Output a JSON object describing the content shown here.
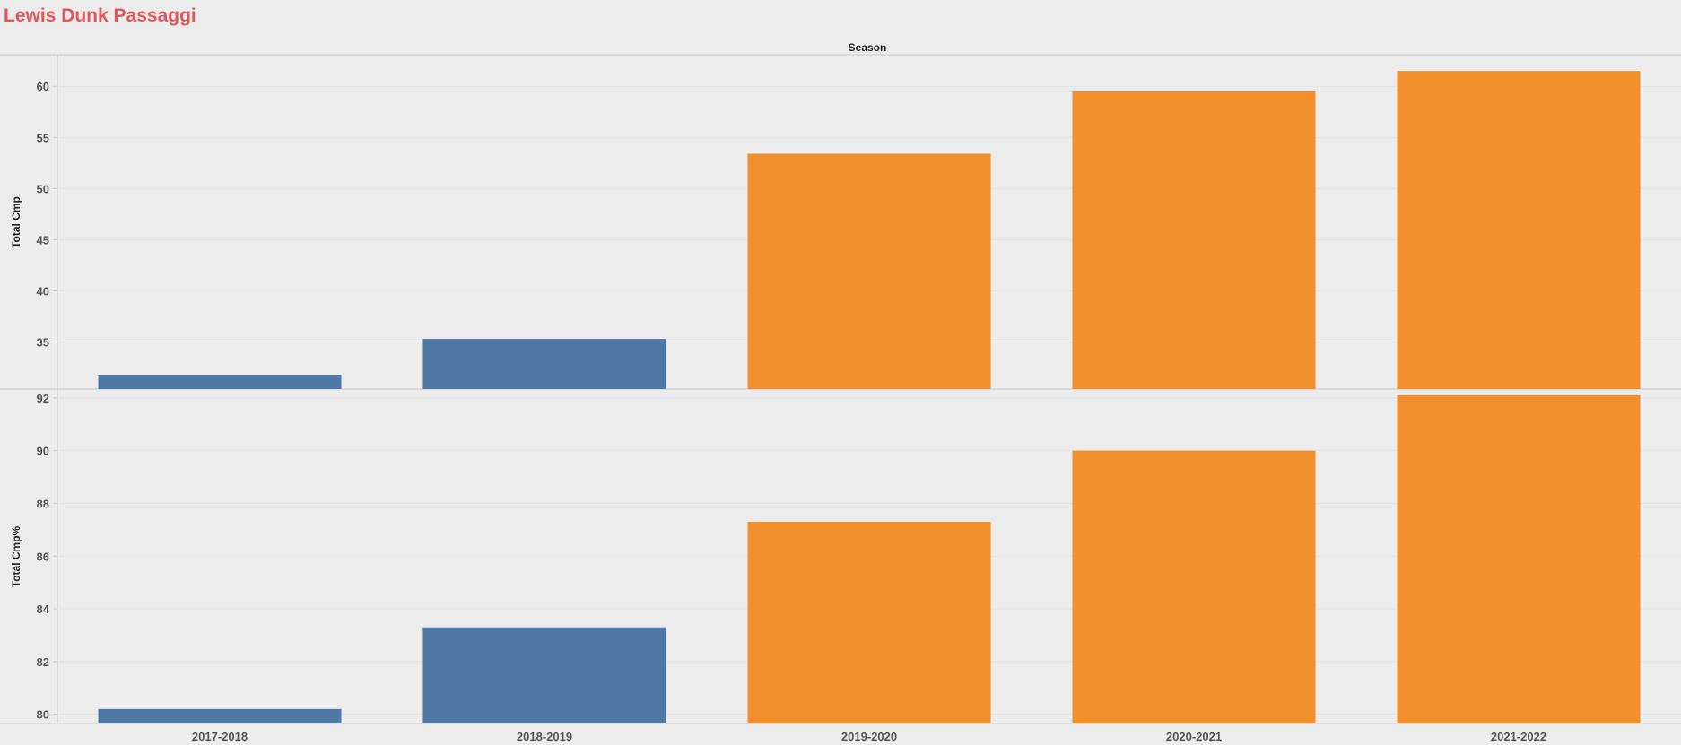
{
  "title": "Lewis Dunk Passaggi",
  "chart_data": {
    "type": "bar",
    "column_header": "Season",
    "categories": [
      "2017-2018",
      "2018-2019",
      "2019-2020",
      "2020-2021",
      "2021-2022"
    ],
    "highlight_colors": [
      "#4e79a7",
      "#4e79a7",
      "#f28e2b",
      "#f28e2b",
      "#f28e2b"
    ],
    "panels": [
      {
        "ylabel": "Total Cmp",
        "ylim": [
          30.4,
          63
        ],
        "yticks": [
          35,
          40,
          45,
          50,
          55,
          60
        ],
        "values": [
          31.8,
          35.3,
          53.4,
          59.5,
          61.5
        ]
      },
      {
        "ylabel": "Total Cmp%",
        "ylim": [
          79.65,
          92.3
        ],
        "yticks": [
          80,
          82,
          84,
          86,
          88,
          90,
          92
        ],
        "values": [
          80.2,
          83.3,
          87.3,
          90.0,
          92.1
        ]
      }
    ],
    "grid": true
  }
}
